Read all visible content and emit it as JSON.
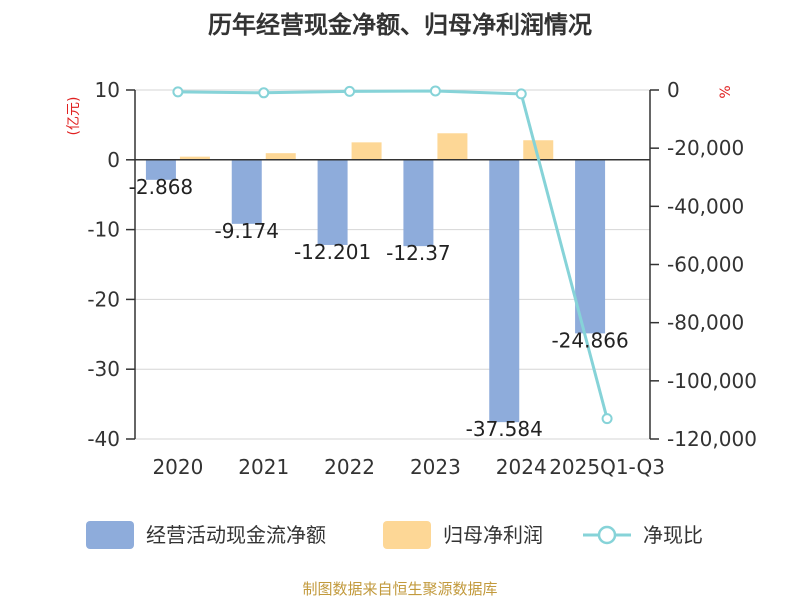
{
  "title": "历年经营现金净额、归母净利润情况",
  "left_unit": "(亿元)",
  "right_unit": "%",
  "source": "制图数据来自恒生聚源数据库",
  "colors": {
    "operating_cash_flow": "#8eacdb",
    "net_profit": "#fdd796",
    "ratio": "#86d3d8",
    "unit": "#e02020",
    "source": "#c29a3d",
    "grid": "#d6d6d6",
    "axis": "#333333"
  },
  "chart_data": {
    "type": "bar",
    "title": "历年经营现金净额、归母净利润情况",
    "categories": [
      "2020",
      "2021",
      "2022",
      "2023",
      "2024",
      "2025Q1-Q3"
    ],
    "ylim_left": [
      -40,
      10
    ],
    "yticks_left": [
      10,
      0,
      -10,
      -20,
      -30,
      -40
    ],
    "yticks_left_labels": [
      "10",
      "0",
      "-10",
      "-20",
      "-30",
      "-40"
    ],
    "ylim_right": [
      -120000,
      0
    ],
    "yticks_right": [
      0,
      -20000,
      -40000,
      -60000,
      -80000,
      -100000,
      -120000
    ],
    "yticks_right_labels": [
      "0",
      "-20,000",
      "-40,000",
      "-60,000",
      "-80,000",
      "-100,000",
      "-120,000"
    ],
    "series": [
      {
        "name": "经营活动现金流净额",
        "type": "bar",
        "axis": "left",
        "values": [
          -2.868,
          -9.174,
          -12.201,
          -12.37,
          -37.584,
          -24.866
        ],
        "labels": [
          "-2.868",
          "-9.174",
          "-12.201",
          "-12.37",
          "-37.584",
          "-24.866"
        ]
      },
      {
        "name": "归母净利润",
        "type": "bar",
        "axis": "left",
        "values": [
          0.45,
          0.95,
          2.5,
          3.8,
          2.8,
          0.0
        ]
      },
      {
        "name": "净现比",
        "type": "line",
        "axis": "right",
        "values": [
          -637,
          -966,
          -488,
          -326,
          -1342,
          -113000
        ]
      }
    ]
  }
}
